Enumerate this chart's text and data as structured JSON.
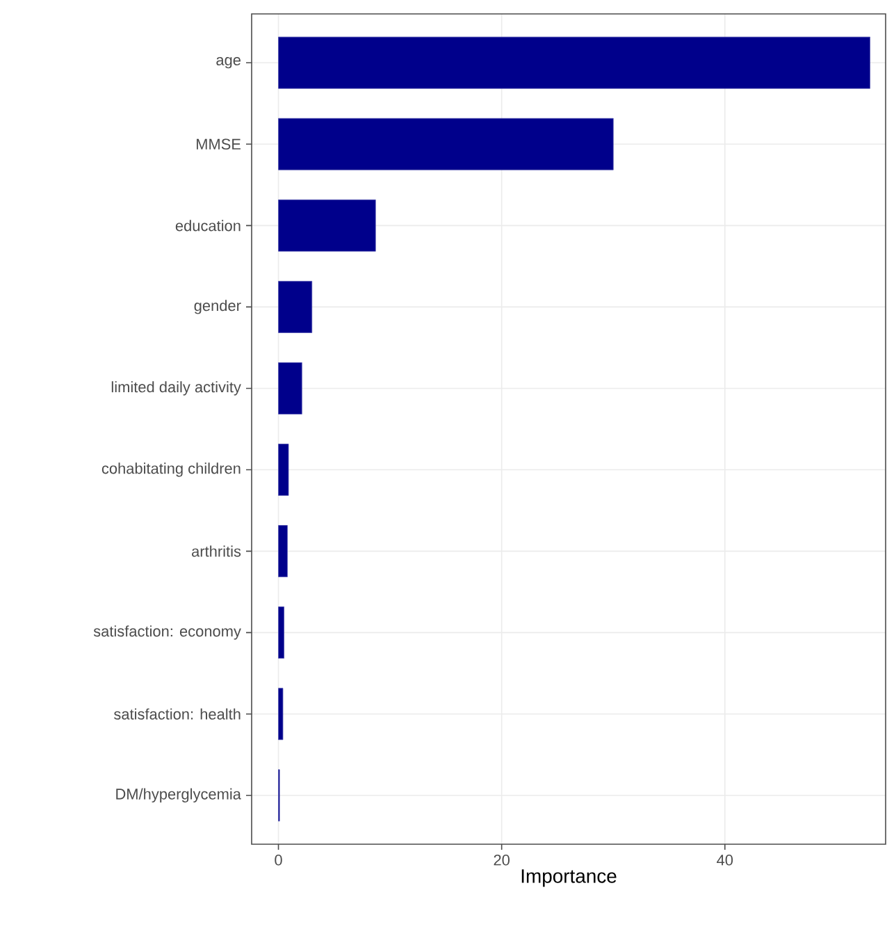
{
  "chart_data": {
    "type": "bar",
    "orientation": "horizontal",
    "xlabel": "Importance",
    "categories": [
      "age",
      "MMSE",
      "education",
      "gender",
      "limited daily activity",
      "cohabitating children",
      "arthritis",
      "satisfaction: economy",
      "satisfaction: health",
      "DM/hyperglycemia"
    ],
    "values": [
      53.0,
      30.0,
      8.7,
      3.0,
      2.1,
      0.9,
      0.8,
      0.5,
      0.4,
      0.1
    ],
    "color": "#00008b",
    "xlim": [
      -2.4,
      54.4
    ],
    "xticks": [
      0,
      20,
      40
    ],
    "grid": true
  }
}
